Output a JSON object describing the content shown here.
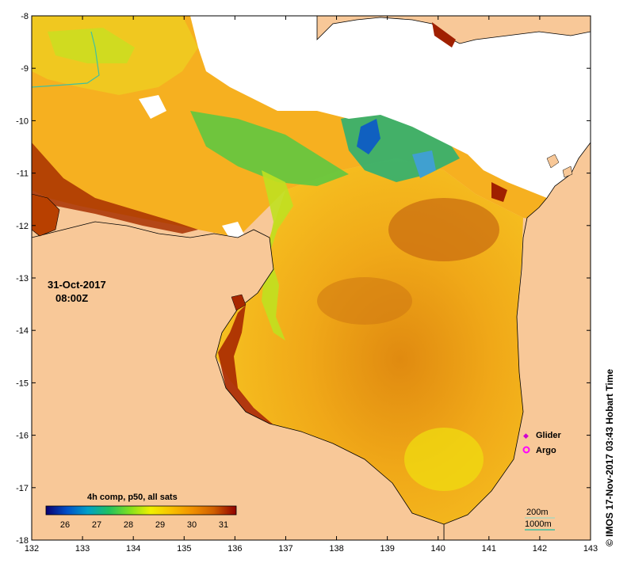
{
  "date_label": "31-Oct-2017",
  "time_label": "08:00Z",
  "colorbar": {
    "title": "4h comp, p50, all sats",
    "ticks": [
      26,
      27,
      28,
      29,
      30,
      31
    ],
    "range": [
      25.4,
      31.4
    ],
    "stops": [
      "#0a0070",
      "#0050c8",
      "#00a0c8",
      "#20c060",
      "#80e020",
      "#f0f000",
      "#f8c000",
      "#f09000",
      "#d06000",
      "#900000"
    ]
  },
  "axes": {
    "lon_ticks": [
      132,
      133,
      134,
      135,
      136,
      137,
      138,
      139,
      140,
      141,
      142,
      143
    ],
    "lat_ticks": [
      -8,
      -9,
      -10,
      -11,
      -12,
      -13,
      -14,
      -15,
      -16,
      -17,
      -18
    ],
    "lon_range": [
      132,
      143
    ],
    "lat_range": [
      -18,
      -8
    ]
  },
  "legend": {
    "glider_label": "Glider",
    "argo_label": "Argo",
    "glider_color": "#d000d0",
    "argo_color": "#ff00ff"
  },
  "scale": {
    "contour_200": "200m",
    "contour_1000": "1000m",
    "color_1000": "#40c0a0"
  },
  "credit": "© IMOS 17-Nov-2017 03:43 Hobart Time",
  "colors": {
    "land": "#f8c898",
    "no_data": "#ffffff",
    "warm_sst": "#f0a010",
    "hot_sst": "#a02000"
  }
}
